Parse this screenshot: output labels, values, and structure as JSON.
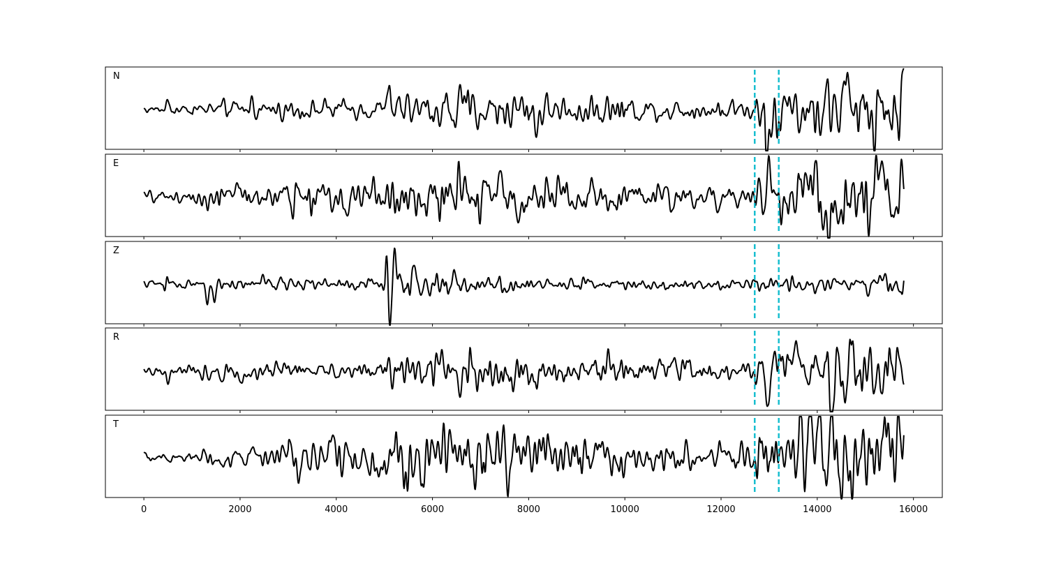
{
  "chart_data": {
    "type": "line",
    "title": "",
    "xlabel": "",
    "ylabel": "",
    "xlim": [
      -800,
      16600
    ],
    "x_ticks": [
      0,
      2000,
      4000,
      6000,
      8000,
      10000,
      12000,
      14000,
      16000
    ],
    "x_tick_labels": [
      "0",
      "2000",
      "4000",
      "6000",
      "8000",
      "10000",
      "12000",
      "14000",
      "16000"
    ],
    "x_range": [
      0,
      15800
    ],
    "sample_step": 10,
    "grid": false,
    "series_color": "#000000",
    "marker_color": "#17becf",
    "markers": [
      12700,
      13200
    ],
    "panels": [
      {
        "label": "N",
        "ylim": [
          -1.15,
          1.15
        ],
        "segments": [
          {
            "x": [
              0,
              1000
            ],
            "rms": 0.06
          },
          {
            "x": [
              1000,
              2000
            ],
            "rms": 0.1
          },
          {
            "x": [
              2000,
              5000
            ],
            "rms": 0.12
          },
          {
            "x": [
              5000,
              6000
            ],
            "rms": 0.2
          },
          {
            "x": [
              6000,
              8000
            ],
            "rms": 0.28
          },
          {
            "x": [
              8000,
              10000
            ],
            "rms": 0.2
          },
          {
            "x": [
              10000,
              12700
            ],
            "rms": 0.14
          },
          {
            "x": [
              12700,
              14000
            ],
            "rms": 0.38
          },
          {
            "x": [
              14000,
              15800
            ],
            "rms": 0.45
          }
        ],
        "spikes": [
          {
            "x": 500,
            "amp": 0.25
          },
          {
            "x": 2250,
            "amp": 0.3
          },
          {
            "x": 5110,
            "amp": 0.95
          },
          {
            "x": 5150,
            "amp": -0.4
          },
          {
            "x": 8170,
            "amp": -0.65
          },
          {
            "x": 12950,
            "amp": -1.0
          },
          {
            "x": 14630,
            "amp": 0.75
          },
          {
            "x": 14800,
            "amp": -0.7
          }
        ]
      },
      {
        "label": "E",
        "ylim": [
          -1.15,
          1.15
        ],
        "segments": [
          {
            "x": [
              0,
              1000
            ],
            "rms": 0.07
          },
          {
            "x": [
              1000,
              3000
            ],
            "rms": 0.18
          },
          {
            "x": [
              3000,
              5000
            ],
            "rms": 0.25
          },
          {
            "x": [
              5000,
              7000
            ],
            "rms": 0.3
          },
          {
            "x": [
              7000,
              10000
            ],
            "rms": 0.25
          },
          {
            "x": [
              10000,
              12700
            ],
            "rms": 0.17
          },
          {
            "x": [
              12700,
              13800
            ],
            "rms": 0.35
          },
          {
            "x": [
              13800,
              15800
            ],
            "rms": 0.5
          }
        ],
        "spikes": [
          {
            "x": 5120,
            "amp": -0.65
          },
          {
            "x": 6540,
            "amp": 0.65
          },
          {
            "x": 6500,
            "amp": -0.75
          },
          {
            "x": 12980,
            "amp": 0.9
          },
          {
            "x": 13950,
            "amp": 1.05
          },
          {
            "x": 14250,
            "amp": -0.8
          },
          {
            "x": 14680,
            "amp": 0.95
          }
        ]
      },
      {
        "label": "Z",
        "ylim": [
          -1.15,
          1.15
        ],
        "segments": [
          {
            "x": [
              0,
              1200
            ],
            "rms": 0.05
          },
          {
            "x": [
              1200,
              5000
            ],
            "rms": 0.08
          },
          {
            "x": [
              5000,
              6600
            ],
            "rms": 0.18
          },
          {
            "x": [
              6600,
              8000
            ],
            "rms": 0.11
          },
          {
            "x": [
              8000,
              12700
            ],
            "rms": 0.07
          },
          {
            "x": [
              12700,
              15000
            ],
            "rms": 0.1
          },
          {
            "x": [
              15000,
              15800
            ],
            "rms": 0.18
          }
        ],
        "spikes": [
          {
            "x": 470,
            "amp": 0.55
          },
          {
            "x": 450,
            "amp": -0.6
          },
          {
            "x": 1320,
            "amp": -0.35
          },
          {
            "x": 1470,
            "amp": -0.6
          },
          {
            "x": 5060,
            "amp": 0.65
          },
          {
            "x": 5110,
            "amp": -1.25
          },
          {
            "x": 5210,
            "amp": 0.55
          },
          {
            "x": 15300,
            "amp": 0.4
          }
        ]
      },
      {
        "label": "R",
        "ylim": [
          -1.15,
          1.15
        ],
        "segments": [
          {
            "x": [
              0,
              1000
            ],
            "rms": 0.06
          },
          {
            "x": [
              1000,
              5000
            ],
            "rms": 0.11
          },
          {
            "x": [
              5000,
              6000
            ],
            "rms": 0.18
          },
          {
            "x": [
              6000,
              8000
            ],
            "rms": 0.27
          },
          {
            "x": [
              8000,
              10000
            ],
            "rms": 0.2
          },
          {
            "x": [
              10000,
              12700
            ],
            "rms": 0.13
          },
          {
            "x": [
              12700,
              14000
            ],
            "rms": 0.35
          },
          {
            "x": [
              14000,
              15800
            ],
            "rms": 0.42
          }
        ],
        "spikes": [
          {
            "x": 500,
            "amp": -0.3
          },
          {
            "x": 5110,
            "amp": 0.85
          },
          {
            "x": 5120,
            "amp": -0.5
          },
          {
            "x": 6780,
            "amp": 0.5
          },
          {
            "x": 8140,
            "amp": -0.55
          },
          {
            "x": 12950,
            "amp": -1.0
          },
          {
            "x": 14300,
            "amp": -0.7
          },
          {
            "x": 14700,
            "amp": 0.6
          }
        ]
      },
      {
        "label": "T",
        "ylim": [
          -1.15,
          1.15
        ],
        "segments": [
          {
            "x": [
              0,
              1200
            ],
            "rms": 0.07
          },
          {
            "x": [
              1200,
              3000
            ],
            "rms": 0.16
          },
          {
            "x": [
              3000,
              5000
            ],
            "rms": 0.28
          },
          {
            "x": [
              5000,
              8000
            ],
            "rms": 0.4
          },
          {
            "x": [
              8000,
              10000
            ],
            "rms": 0.3
          },
          {
            "x": [
              10000,
              12700
            ],
            "rms": 0.18
          },
          {
            "x": [
              12700,
              13800
            ],
            "rms": 0.4
          },
          {
            "x": [
              13800,
              15800
            ],
            "rms": 0.55
          }
        ],
        "spikes": [
          {
            "x": 5800,
            "amp": -0.5
          },
          {
            "x": 9700,
            "amp": -0.6
          },
          {
            "x": 13650,
            "amp": 1.05
          },
          {
            "x": 13950,
            "amp": -0.95
          },
          {
            "x": 14050,
            "amp": 0.75
          },
          {
            "x": 14700,
            "amp": -0.7
          }
        ]
      }
    ]
  }
}
